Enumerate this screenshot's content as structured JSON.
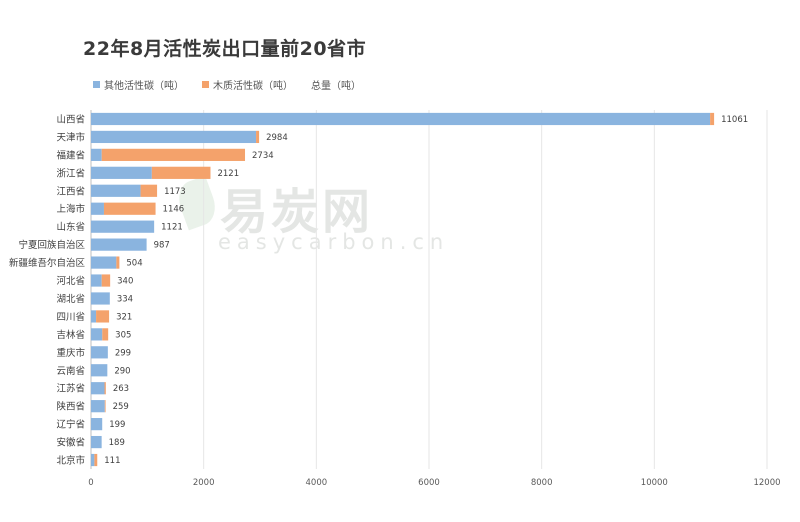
{
  "title": "22年8月活性炭出口量前20省市",
  "watermark": {
    "text": "易炭网",
    "sub": "easycarbon.cn"
  },
  "legend": [
    {
      "name": "其他活性碳（吨）",
      "color": "#8ab4df"
    },
    {
      "name": "木质活性碳（吨）",
      "color": "#f4a26b"
    },
    {
      "name": "总量（吨）",
      "color": ""
    }
  ],
  "chart_data": {
    "type": "bar",
    "orientation": "horizontal",
    "stacked": true,
    "title": "22年8月活性炭出口量前20省市",
    "xlim": [
      0,
      12000
    ],
    "xticks": [
      0,
      2000,
      4000,
      6000,
      8000,
      10000,
      12000
    ],
    "grid": true,
    "legend_position": "top-left",
    "categories": [
      "山西省",
      "天津市",
      "福建省",
      "浙江省",
      "江西省",
      "上海市",
      "山东省",
      "宁夏回族自治区",
      "新疆维吾尔自治区",
      "河北省",
      "湖北省",
      "四川省",
      "吉林省",
      "重庆市",
      "云南省",
      "江苏省",
      "陕西省",
      "辽宁省",
      "安徽省",
      "北京市"
    ],
    "series": [
      {
        "name": "其他活性碳（吨）",
        "color": "#8ab4df",
        "values": [
          10990,
          2930,
          190,
          1080,
          880,
          230,
          1121,
          987,
          450,
          190,
          334,
          90,
          200,
          299,
          290,
          240,
          245,
          199,
          189,
          60
        ]
      },
      {
        "name": "木质活性碳（吨）",
        "color": "#f4a26b",
        "values": [
          71,
          54,
          2544,
          1041,
          293,
          916,
          0,
          0,
          54,
          150,
          0,
          231,
          105,
          0,
          0,
          23,
          14,
          0,
          0,
          51
        ]
      }
    ],
    "totals": {
      "name": "总量（吨）",
      "values": [
        11061,
        2984,
        2734,
        2121,
        1173,
        1146,
        1121,
        987,
        504,
        340,
        334,
        321,
        305,
        299,
        290,
        263,
        259,
        199,
        189,
        111
      ]
    }
  }
}
